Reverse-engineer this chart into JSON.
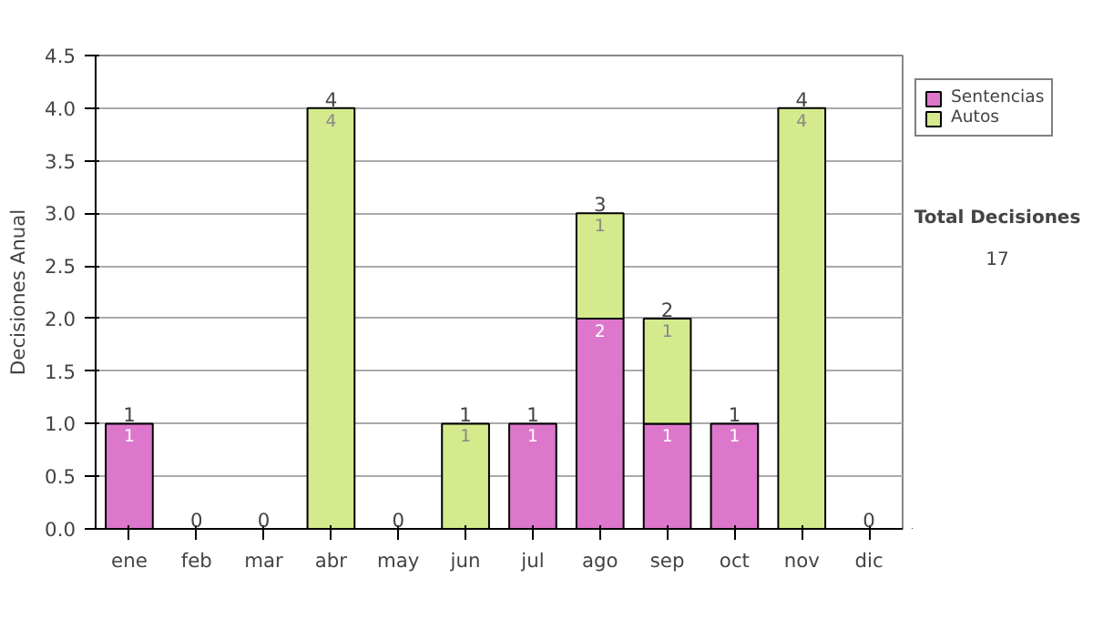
{
  "chart_data": {
    "type": "bar",
    "stacked": true,
    "ylabel": "Decisiones Anual",
    "categories": [
      "ene",
      "feb",
      "mar",
      "abr",
      "may",
      "jun",
      "jul",
      "ago",
      "sep",
      "oct",
      "nov",
      "dic"
    ],
    "series": [
      {
        "name": "Sentencias",
        "color": "#dd77cc",
        "values": [
          1,
          0,
          0,
          0,
          0,
          0,
          1,
          2,
          1,
          1,
          0,
          0
        ],
        "value_labels": [
          "1",
          null,
          null,
          null,
          null,
          null,
          "1",
          "2",
          "1",
          "1",
          null,
          null
        ]
      },
      {
        "name": "Autos",
        "color": "#d4ea8c",
        "values": [
          0,
          0,
          0,
          4,
          0,
          1,
          0,
          1,
          1,
          0,
          4,
          0
        ],
        "value_labels": [
          null,
          null,
          null,
          "4",
          null,
          "1",
          null,
          "1",
          "1",
          null,
          "4",
          null
        ]
      }
    ],
    "totals": [
      "1",
      "0",
      "0",
      "4",
      "0",
      "1",
      "1",
      "3",
      "2",
      "1",
      "4",
      "0"
    ],
    "ylim": [
      0,
      4.5
    ],
    "yticks": [
      {
        "value": 0,
        "label": "0.0"
      },
      {
        "value": 0.5,
        "label": "0.5"
      },
      {
        "value": 1,
        "label": "1.0"
      },
      {
        "value": 1.5,
        "label": "1.5"
      },
      {
        "value": 2,
        "label": "2.0"
      },
      {
        "value": 2.5,
        "label": "2.5"
      },
      {
        "value": 3,
        "label": "3.0"
      },
      {
        "value": 3.5,
        "label": "3.5"
      },
      {
        "value": 4,
        "label": "4.0"
      },
      {
        "value": 4.5,
        "label": "4.5"
      }
    ],
    "grid": "y",
    "legend": "right",
    "annotations": [
      "Total Decisiones",
      "17"
    ]
  }
}
